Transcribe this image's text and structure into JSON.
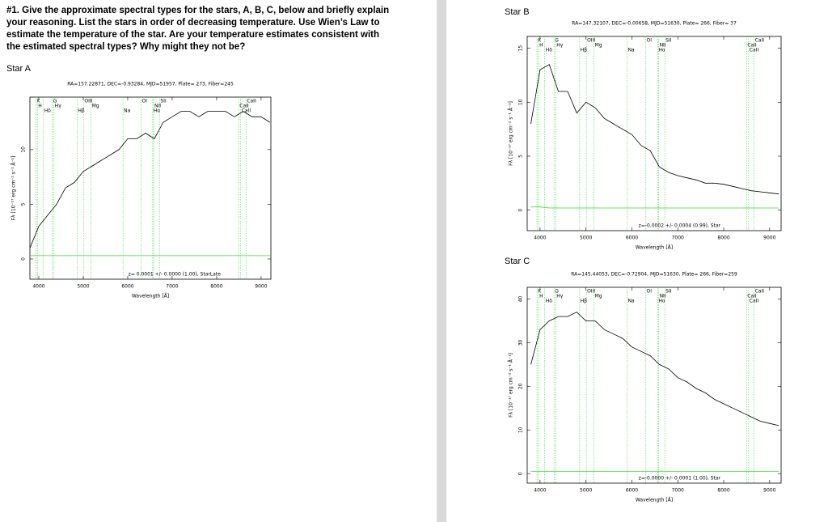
{
  "question": "#1. Give the approximate spectral types for the stars, A, B, C, below and briefly explain your reasoning. List the stars in order of decreasing temperature. Use Wien’s Law to estimate the temperature of the star. Are your temperature estimates consistent with the estimated spectral types? Why might they not be?",
  "lines": [
    {
      "label": "K",
      "x": 3934
    },
    {
      "label": "H",
      "x": 3969
    },
    {
      "label": "Hδ",
      "x": 4102
    },
    {
      "label": "G",
      "x": 4305
    },
    {
      "label": "Hγ",
      "x": 4341
    },
    {
      "label": "Hβ",
      "x": 4861
    },
    {
      "label": "OIII",
      "x": 5007
    },
    {
      "label": "Mg",
      "x": 5175
    },
    {
      "label": "Na",
      "x": 5894
    },
    {
      "label": "OI",
      "x": 6300
    },
    {
      "label": "NII",
      "x": 6583
    },
    {
      "label": "Hα",
      "x": 6563
    },
    {
      "label": "SII",
      "x": 6717
    },
    {
      "label": "CaII",
      "x": 8498
    },
    {
      "label": "CaII",
      "x": 8542
    },
    {
      "label": "CaII",
      "x": 8662
    }
  ],
  "chart_data": [
    {
      "type": "line",
      "label": "Star A",
      "title": "RA=157.22871, DEC=-0.93284, MJD=51957, Plate= 273, Fiber=245",
      "annotation": "z= 0.0001 +/- 0.0000 (1.00), StarLate",
      "x_label": "Wavelength [Å]",
      "y_label": "Fλ [10⁻¹⁷ erg cm⁻² s⁻¹ Å⁻¹]",
      "x": [
        3800,
        4000,
        4200,
        4400,
        4600,
        4800,
        5000,
        5200,
        5400,
        5600,
        5800,
        6000,
        6200,
        6400,
        6600,
        6800,
        7000,
        7200,
        7400,
        7600,
        7800,
        8000,
        8200,
        8400,
        8600,
        8800,
        9000,
        9200
      ],
      "series": [
        {
          "name": "flux",
          "color": "#000000",
          "values": [
            1,
            3,
            4,
            5,
            6.5,
            7,
            8,
            8.5,
            9,
            9.5,
            10,
            11,
            11,
            11.5,
            11,
            12.5,
            13,
            13.5,
            13.5,
            13,
            13.5,
            13.5,
            13.5,
            13,
            13.5,
            13,
            13,
            12.5
          ]
        },
        {
          "name": "error",
          "color": "#33dd33",
          "values": [
            0.3,
            0.3,
            0.3,
            0.3,
            0.3,
            0.3,
            0.3,
            0.3,
            0.3,
            0.3,
            0.3,
            0.3,
            0.3,
            0.3,
            0.3,
            0.3,
            0.3,
            0.3,
            0.3,
            0.3,
            0.3,
            0.3,
            0.3,
            0.3,
            0.3,
            0.3,
            0.3,
            0.3
          ]
        }
      ],
      "xlim": [
        3800,
        9220
      ],
      "xticks": [
        4000,
        5000,
        6000,
        7000,
        8000,
        9000
      ],
      "ylim": [
        -1.85,
        14.8
      ],
      "yticks": [
        0,
        5,
        10
      ]
    },
    {
      "type": "line",
      "label": "Star B",
      "title": "RA=147.32107, DEC=-0.00658, MJD=51630, Plate= 266, Fiber= 37",
      "annotation": "z=-0.0002 +/- 0.0004 (0.99), Star",
      "x_label": "Wavelength [Å]",
      "y_label": "Fλ [10⁻¹⁷ erg cm⁻² s⁻¹ Å⁻¹]",
      "x": [
        3800,
        4000,
        4200,
        4400,
        4600,
        4800,
        5000,
        5200,
        5400,
        5600,
        5800,
        6000,
        6200,
        6400,
        6600,
        6800,
        7000,
        7200,
        7400,
        7600,
        7800,
        8000,
        8200,
        8400,
        8600,
        8800,
        9000,
        9200
      ],
      "series": [
        {
          "name": "flux",
          "color": "#000000",
          "values": [
            8,
            13,
            13.5,
            11,
            11,
            9,
            10,
            9.5,
            8.5,
            8,
            7.5,
            7,
            6,
            5.5,
            4,
            3.5,
            3.2,
            3,
            2.8,
            2.5,
            2.5,
            2.4,
            2.2,
            2,
            1.8,
            1.7,
            1.6,
            1.5
          ]
        },
        {
          "name": "error",
          "color": "#33dd33",
          "values": [
            0.3,
            0.3,
            0.2,
            0.2,
            0.2,
            0.2,
            0.2,
            0.2,
            0.2,
            0.2,
            0.2,
            0.2,
            0.2,
            0.2,
            0.2,
            0.2,
            0.2,
            0.2,
            0.2,
            0.2,
            0.2,
            0.2,
            0.2,
            0.2,
            0.2,
            0.2,
            0.2,
            0.2
          ]
        }
      ],
      "xlim": [
        3720,
        9250
      ],
      "xticks": [
        4000,
        5000,
        6000,
        7000,
        8000,
        9000
      ],
      "ylim": [
        -1.9,
        16.1
      ],
      "yticks": [
        0,
        5,
        10,
        15
      ]
    },
    {
      "type": "line",
      "label": "Star C",
      "title": "RA=145.44053, DEC=-0.72904, MJD=51630, Plate= 266, Fiber=259",
      "annotation": "z=-0.0000 +/- 0.0001 (1.00), Star",
      "x_label": "Wavelength [Å]",
      "y_label": "Fλ [10⁻¹⁷ erg cm⁻² s⁻¹ Å⁻¹]",
      "x": [
        3800,
        4000,
        4200,
        4400,
        4600,
        4800,
        5000,
        5200,
        5400,
        5600,
        5800,
        6000,
        6200,
        6400,
        6600,
        6800,
        7000,
        7200,
        7400,
        7600,
        7800,
        8000,
        8200,
        8400,
        8600,
        8800,
        9000,
        9200
      ],
      "series": [
        {
          "name": "flux",
          "color": "#000000",
          "values": [
            25,
            33,
            35,
            36,
            36,
            37,
            35,
            35,
            33,
            32,
            31,
            29,
            28,
            27,
            25,
            24,
            22,
            21,
            19.5,
            18.5,
            17,
            16,
            15,
            14,
            13,
            12,
            11.5,
            11
          ]
        },
        {
          "name": "error",
          "color": "#33dd33",
          "values": [
            0.5,
            0.5,
            0.5,
            0.5,
            0.5,
            0.5,
            0.5,
            0.5,
            0.5,
            0.5,
            0.5,
            0.5,
            0.5,
            0.5,
            0.5,
            0.5,
            0.5,
            0.5,
            0.5,
            0.5,
            0.5,
            0.5,
            0.5,
            0.5,
            0.5,
            0.5,
            0.5,
            0.5
          ]
        }
      ],
      "xlim": [
        3720,
        9250
      ],
      "xticks": [
        4000,
        5000,
        6000,
        7000,
        8000,
        9000
      ],
      "ylim": [
        -2.2,
        42.7
      ],
      "yticks": [
        0,
        10,
        20,
        30,
        40
      ]
    }
  ]
}
